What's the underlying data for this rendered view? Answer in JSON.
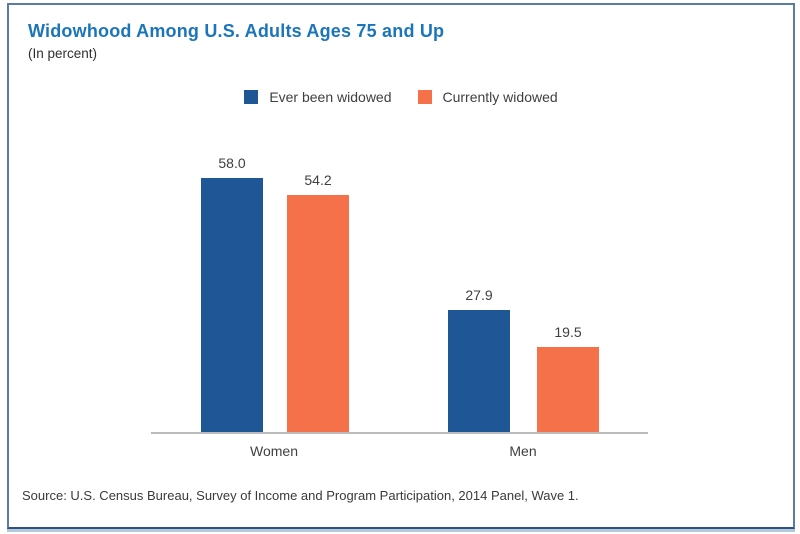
{
  "header": {
    "title": "Widowhood Among U.S. Adults Ages 75 and Up",
    "subtitle": "(In percent)"
  },
  "chart_data": {
    "type": "bar",
    "title": "Widowhood Among U.S. Adults Ages 75 and Up",
    "subtitle": "(In percent)",
    "categories": [
      "Women",
      "Men"
    ],
    "series": [
      {
        "name": "Ever been widowed",
        "color": "#1f5796",
        "values": [
          58.0,
          27.9
        ],
        "labels": [
          "58.0",
          "27.9"
        ]
      },
      {
        "name": "Currently widowed",
        "color": "#f4714a",
        "values": [
          54.2,
          19.5
        ],
        "labels": [
          "54.2",
          "19.5"
        ]
      }
    ],
    "ylim": [
      0,
      65
    ],
    "grid": false,
    "axes_shown": [
      "x-baseline-only"
    ],
    "value_labels": true,
    "legend_position": "top-center"
  },
  "footer": {
    "source": "Source: U.S. Census Bureau, Survey of Income and Program Participation, 2014 Panel, Wave 1."
  },
  "colors": {
    "title_blue": "#1b75bb",
    "bar_blue": "#1f5796",
    "bar_orange": "#f4714a",
    "panel_border": "#5a7ca3",
    "panel_shadow": "#b3c9dc",
    "axis_line": "#bcbcbc",
    "text": "#3f3f3f"
  }
}
